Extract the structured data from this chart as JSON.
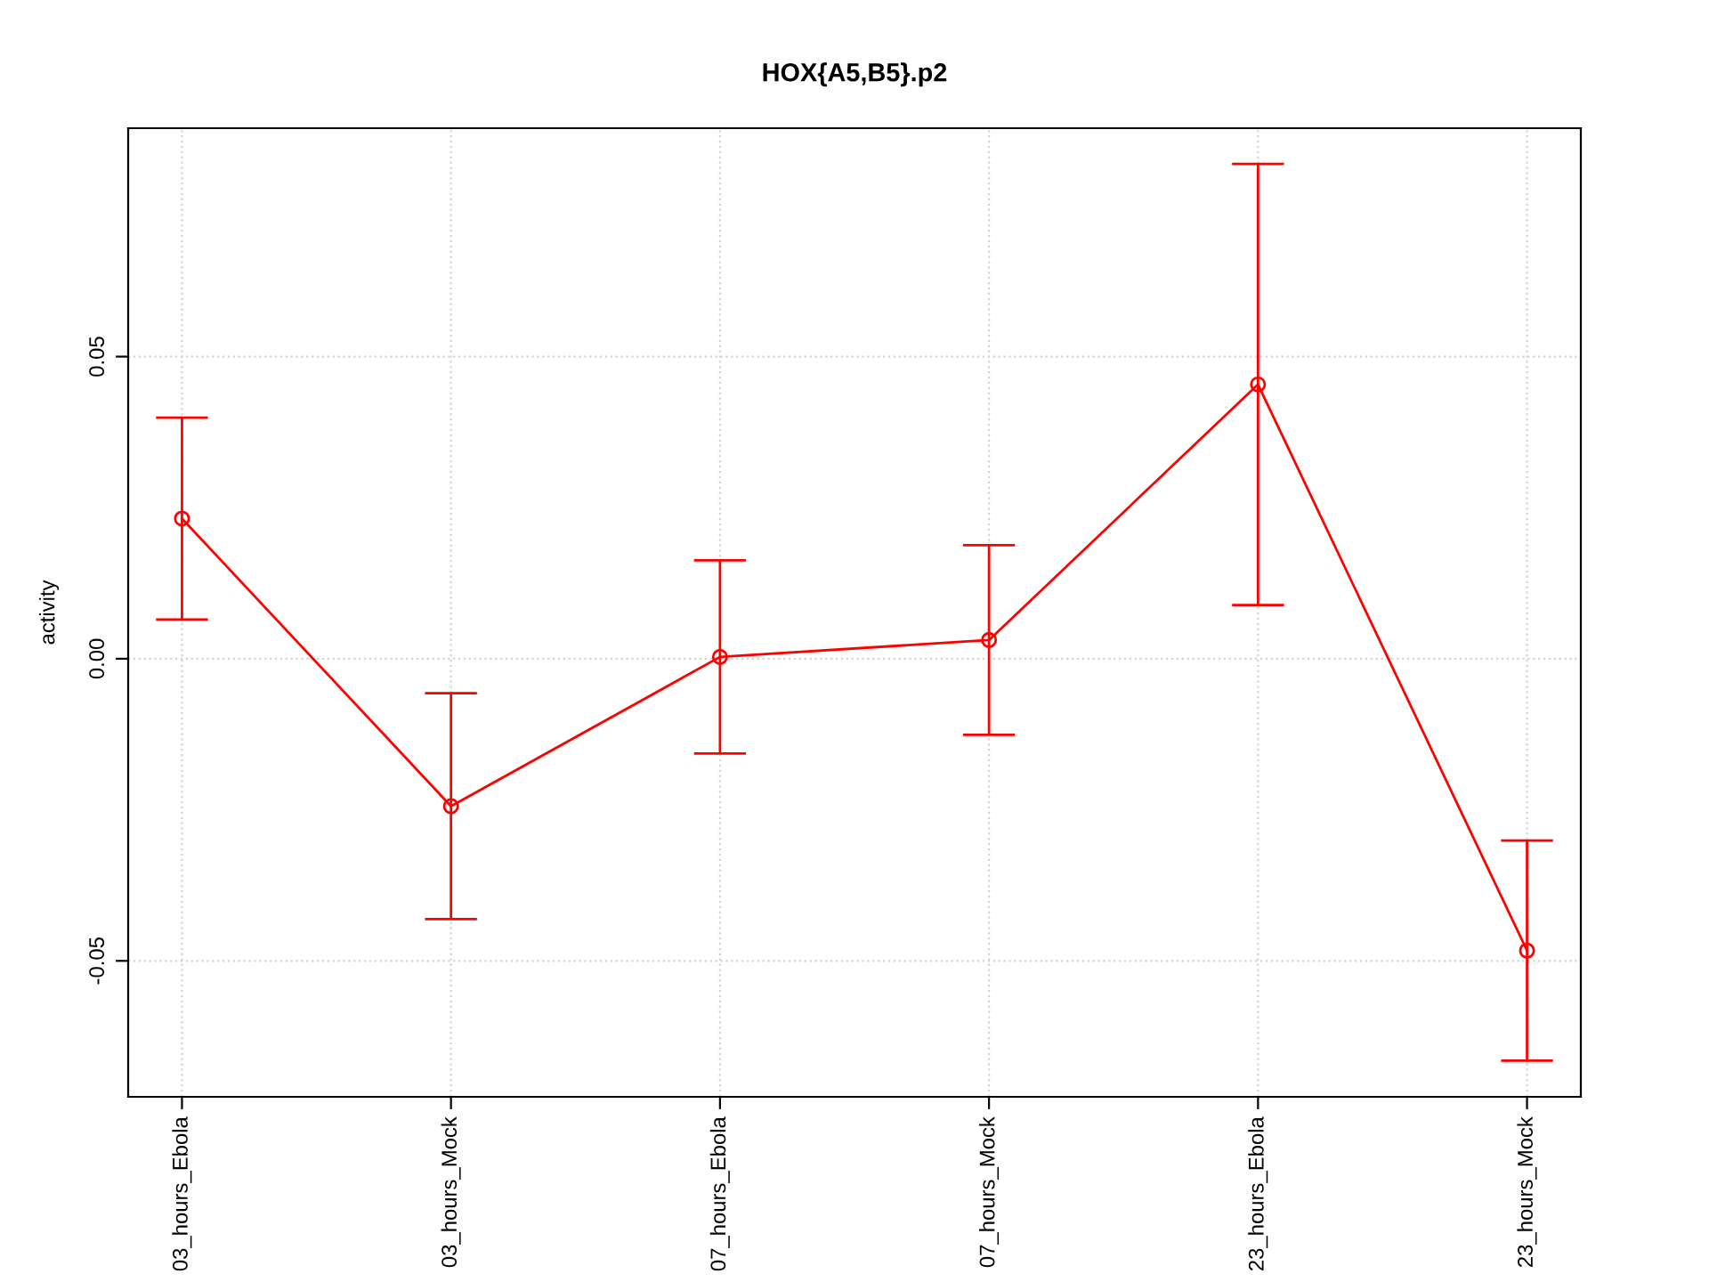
{
  "chart_data": {
    "type": "line",
    "title": "HOX{A5,B5}.p2",
    "ylabel": "activity",
    "categories": [
      "03_hours_Ebola",
      "03_hours_Mock",
      "07_hours_Ebola",
      "07_hours_Mock",
      "23_hours_Ebola",
      "23_hours_Mock"
    ],
    "series": [
      {
        "color": "#ff0000",
        "values": [
          0.0232,
          -0.0244,
          0.0003,
          0.0031,
          0.0454,
          -0.0483
        ],
        "errors": [
          0.0167,
          0.0187,
          0.016,
          0.0157,
          0.0365,
          0.0182
        ]
      }
    ],
    "ylim": [
      -0.0725,
      0.0878
    ],
    "yticks": [
      {
        "value": -0.05,
        "label": "-0.05"
      },
      {
        "value": 0,
        "label": "0.00"
      },
      {
        "value": 0.05,
        "label": "0.05"
      }
    ],
    "grid": true,
    "marker": "circle",
    "line_style": "solid"
  }
}
